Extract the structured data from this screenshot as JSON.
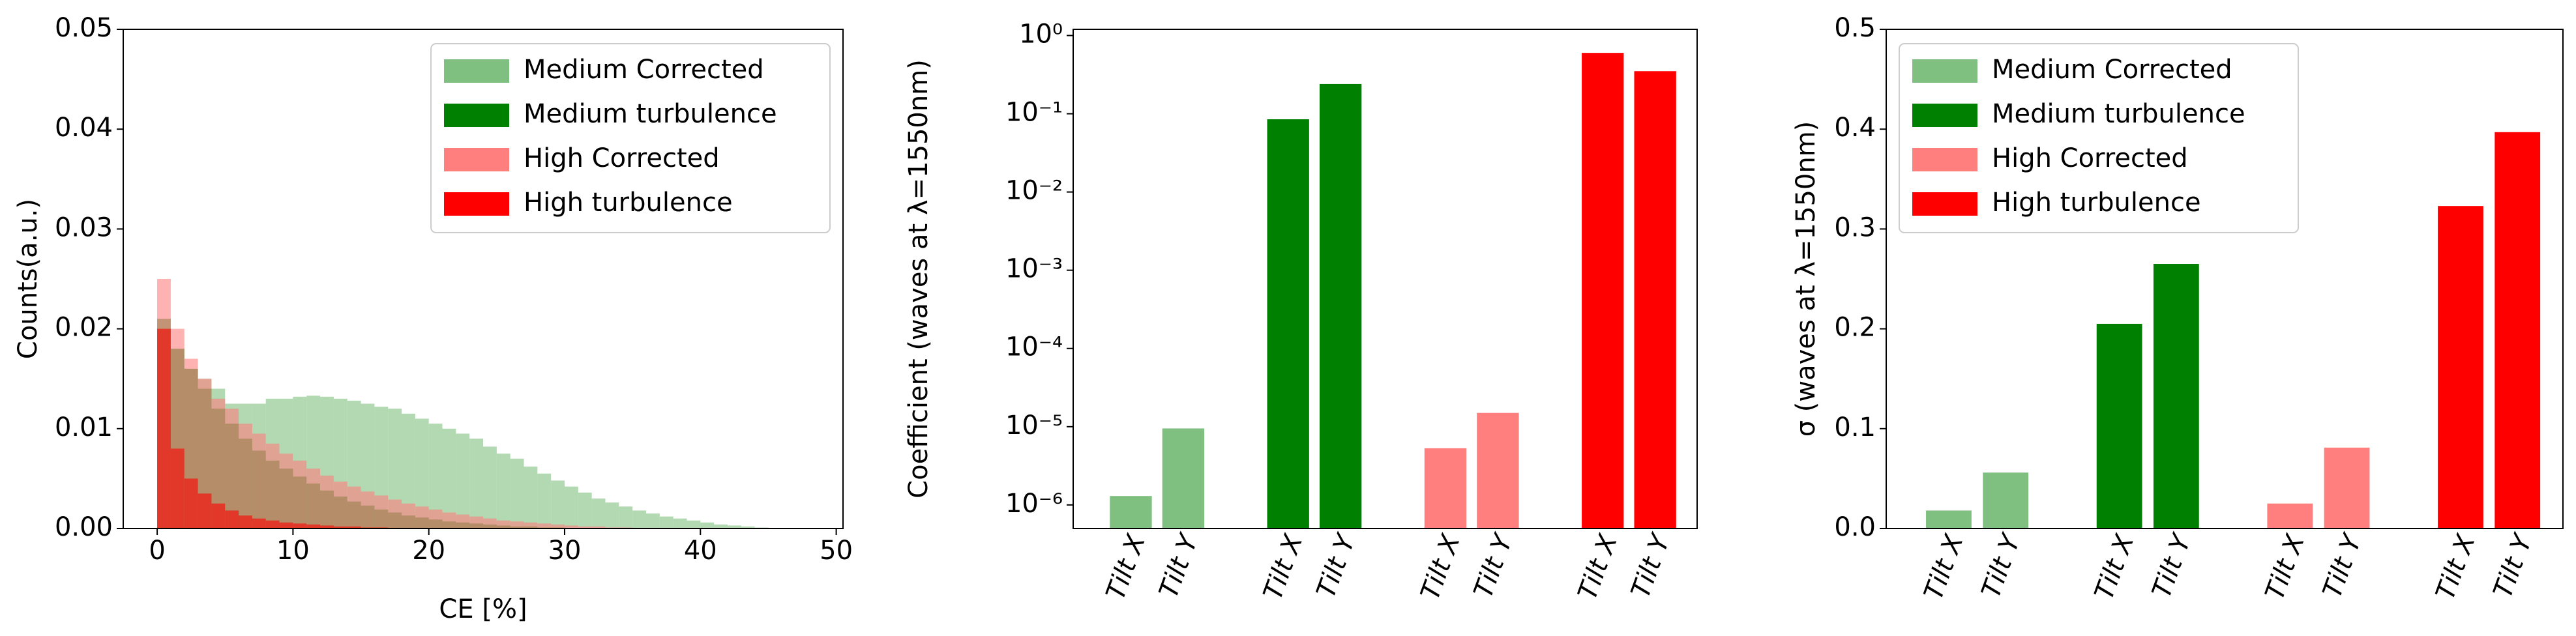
{
  "chart_data": [
    {
      "type": "histogram",
      "xlabel": "CE [%]",
      "ylabel": "Counts(a.u.)",
      "bins": [
        0,
        1,
        2,
        3,
        4,
        5,
        6,
        7,
        8,
        9,
        10,
        11,
        12,
        13,
        14,
        15,
        16,
        17,
        18,
        19,
        20,
        21,
        22,
        23,
        24,
        25,
        26,
        27,
        28,
        29,
        30,
        31,
        32,
        33,
        34,
        35,
        36,
        37,
        38,
        39,
        40,
        41,
        42,
        43,
        44,
        45,
        46,
        47,
        48,
        49,
        50
      ],
      "series": [
        {
          "name": "Medium Corrected",
          "color": "#7fbf7f",
          "values": [
            0.02,
            0.018,
            0.016,
            0.015,
            0.014,
            0.0125,
            0.0125,
            0.0125,
            0.013,
            0.013,
            0.0132,
            0.0133,
            0.0132,
            0.013,
            0.0128,
            0.0125,
            0.0122,
            0.012,
            0.0115,
            0.011,
            0.0105,
            0.01,
            0.0095,
            0.009,
            0.0082,
            0.0075,
            0.007,
            0.0062,
            0.0055,
            0.0048,
            0.0042,
            0.0036,
            0.003,
            0.0026,
            0.0022,
            0.0018,
            0.0015,
            0.0012,
            0.001,
            0.0008,
            0.0006,
            0.0004,
            0.0003,
            0.0002,
            0.0001,
            0,
            0,
            0,
            0,
            0
          ]
        },
        {
          "name": "Medium turbulence",
          "color": "#008000",
          "values": [
            0.021,
            0.018,
            0.016,
            0.014,
            0.012,
            0.0105,
            0.009,
            0.0078,
            0.0068,
            0.006,
            0.0052,
            0.0045,
            0.0038,
            0.0032,
            0.0027,
            0.0023,
            0.0019,
            0.0016,
            0.0013,
            0.0011,
            0.0009,
            0.0007,
            0.0006,
            0.0005,
            0.0004,
            0.0003,
            0.0002,
            0.0002,
            0.0001,
            0.0001,
            0,
            0,
            0,
            0,
            0,
            0,
            0,
            0,
            0,
            0,
            0,
            0,
            0,
            0,
            0,
            0,
            0,
            0,
            0,
            0
          ]
        },
        {
          "name": "High Corrected",
          "color": "#ff7f7f",
          "values": [
            0.025,
            0.02,
            0.017,
            0.015,
            0.013,
            0.012,
            0.0105,
            0.0095,
            0.0085,
            0.0075,
            0.0068,
            0.006,
            0.0053,
            0.0047,
            0.0042,
            0.0037,
            0.0033,
            0.0029,
            0.0025,
            0.0022,
            0.0019,
            0.0016,
            0.0014,
            0.0012,
            0.001,
            0.0008,
            0.0007,
            0.0006,
            0.0005,
            0.0004,
            0.0003,
            0.0002,
            0.0002,
            0.0001,
            0.0001,
            0,
            0,
            0,
            0,
            0,
            0,
            0,
            0,
            0,
            0,
            0,
            0,
            0,
            0,
            0
          ]
        },
        {
          "name": "High turbulence",
          "color": "#ff0000",
          "values": [
            0.02,
            0.008,
            0.005,
            0.0035,
            0.0025,
            0.0018,
            0.0013,
            0.001,
            0.0008,
            0.0006,
            0.0005,
            0.0004,
            0.0003,
            0.0002,
            0.0002,
            0.0001,
            0.0001,
            0,
            0,
            0,
            0,
            0,
            0,
            0,
            0,
            0,
            0,
            0,
            0,
            0,
            0,
            0,
            0,
            0,
            0,
            0,
            0,
            0,
            0,
            0,
            0,
            0,
            0,
            0,
            0,
            0,
            0,
            0,
            0,
            0
          ]
        }
      ],
      "xlim": [
        -2.5,
        50.5
      ],
      "xticks": [
        0,
        10,
        20,
        30,
        40,
        50
      ],
      "ylim": [
        0,
        0.05
      ],
      "yticks": [
        {
          "value": 0,
          "label": "0.00"
        },
        {
          "value": 0.01,
          "label": "0.01"
        },
        {
          "value": 0.02,
          "label": "0.02"
        },
        {
          "value": 0.03,
          "label": "0.03"
        },
        {
          "value": 0.04,
          "label": "0.04"
        },
        {
          "value": 0.05,
          "label": "0.05"
        }
      ],
      "legend": "upper right"
    },
    {
      "type": "bar",
      "ylabel": "Coefficient (waves at λ=1550nm)",
      "log_y": true,
      "categories": [
        "Tilt X",
        "Tilt Y",
        "Tilt X",
        "Tilt Y",
        "Tilt X",
        "Tilt Y",
        "Tilt X",
        "Tilt Y"
      ],
      "series": [
        {
          "color": "#7fbf7f",
          "values": [
            1.3e-06,
            9.5e-06,
            null,
            null,
            null,
            null,
            null,
            null
          ]
        },
        {
          "color": "#008000",
          "values": [
            null,
            null,
            0.085,
            0.24,
            null,
            null,
            null,
            null
          ]
        },
        {
          "color": "#ff7f7f",
          "values": [
            null,
            null,
            null,
            null,
            5.3e-06,
            1.5e-05,
            null,
            null
          ]
        },
        {
          "color": "#ff0000",
          "values": [
            null,
            null,
            null,
            null,
            null,
            null,
            0.6,
            0.35
          ]
        }
      ],
      "ylim": [
        5e-07,
        1.2
      ],
      "yticks": [
        {
          "value": 1e-06,
          "label": "10⁻⁶"
        },
        {
          "value": 1e-05,
          "label": "10⁻⁵"
        },
        {
          "value": 0.0001,
          "label": "10⁻⁴"
        },
        {
          "value": 0.001,
          "label": "10⁻³"
        },
        {
          "value": 0.01,
          "label": "10⁻²"
        },
        {
          "value": 0.1,
          "label": "10⁻¹"
        },
        {
          "value": 1,
          "label": "10⁰"
        }
      ]
    },
    {
      "type": "bar",
      "ylabel": "σ (waves at λ=1550nm)",
      "categories": [
        "Tilt X",
        "Tilt Y",
        "Tilt X",
        "Tilt Y",
        "Tilt X",
        "Tilt Y",
        "Tilt X",
        "Tilt Y"
      ],
      "series": [
        {
          "name": "Medium Corrected",
          "color": "#7fbf7f",
          "values": [
            0.018,
            0.056,
            null,
            null,
            null,
            null,
            null,
            null
          ]
        },
        {
          "name": "Medium turbulence",
          "color": "#008000",
          "values": [
            null,
            null,
            0.205,
            0.265,
            null,
            null,
            null,
            null
          ]
        },
        {
          "name": "High Corrected",
          "color": "#ff7f7f",
          "values": [
            null,
            null,
            null,
            null,
            0.025,
            0.081,
            null,
            null
          ]
        },
        {
          "name": "High turbulence",
          "color": "#ff0000",
          "values": [
            null,
            null,
            null,
            null,
            null,
            null,
            0.323,
            0.397
          ]
        }
      ],
      "ylim": [
        0,
        0.5
      ],
      "yticks": [
        {
          "value": 0,
          "label": "0.0"
        },
        {
          "value": 0.1,
          "label": "0.1"
        },
        {
          "value": 0.2,
          "label": "0.2"
        },
        {
          "value": 0.3,
          "label": "0.3"
        },
        {
          "value": 0.4,
          "label": "0.4"
        },
        {
          "value": 0.5,
          "label": "0.5"
        }
      ],
      "legend": "upper left"
    }
  ]
}
